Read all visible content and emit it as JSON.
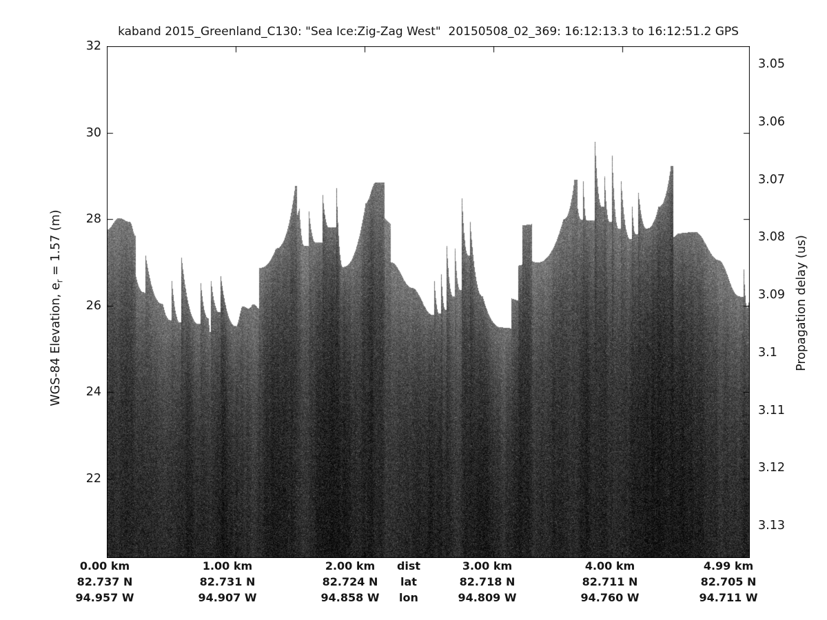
{
  "title": "kaband 2015_Greenland_C130: \"Sea Ice:Zig-Zag West\"  20150508_02_369: 16:12:13.3 to 16:12:51.2 GPS",
  "left_axis": {
    "label_prefix": "WGS-84 Elevation, e",
    "label_sub": "r",
    "label_suffix": " = 1.57 (m)",
    "tick_labels": [
      "32",
      "30",
      "28",
      "26",
      "24",
      "22"
    ],
    "tick_values": [
      32,
      30,
      28,
      26,
      24,
      22
    ]
  },
  "right_axis": {
    "label": "Propagation delay (us)",
    "tick_labels": [
      "3.05",
      "3.06",
      "3.07",
      "3.08",
      "3.09",
      "3.1",
      "3.11",
      "3.12",
      "3.13"
    ]
  },
  "bottom_axis": {
    "row_headers": [
      "dist",
      "lat",
      "lon"
    ],
    "columns": [
      {
        "cells": [
          "0.00 km",
          "82.737 N",
          "94.957 W"
        ]
      },
      {
        "cells": [
          "1.00 km",
          "82.731 N",
          "94.907 W"
        ]
      },
      {
        "cells": [
          "2.00 km",
          "82.724 N",
          "94.858 W"
        ]
      },
      {
        "cells": [
          "dist",
          "lat",
          "lon"
        ],
        "is_header": true
      },
      {
        "cells": [
          "3.00 km",
          "82.718 N",
          "94.809 W"
        ]
      },
      {
        "cells": [
          "4.00 km",
          "82.711 N",
          "94.760 W"
        ]
      },
      {
        "cells": [
          "4.99 km",
          "82.705 N",
          "94.711 W"
        ]
      }
    ]
  },
  "chart_data": {
    "type": "heatmap",
    "subtype": "radar-echogram",
    "description": "Ka-band radar altimeter echogram over sea ice: white above the surface return; speckled grey return below the jagged ice-surface line, darkening with depth; vertical streak noise in the deep region.",
    "x_axis": {
      "range_km": [
        0,
        4.99
      ],
      "tick_km": [
        1,
        2,
        3,
        4
      ]
    },
    "y_axis_elevation_m": {
      "ticks": [
        32,
        30,
        28,
        26,
        24,
        22
      ],
      "range": [
        20.16,
        32
      ]
    },
    "y_axis_delay_us": {
      "ticks": [
        3.05,
        3.06,
        3.07,
        3.08,
        3.09,
        3.1,
        3.11,
        3.12,
        3.13
      ]
    },
    "shading": {
      "surface_gray": 118,
      "deep_gray": 36,
      "noise_amplitude": 52,
      "background": "#ffffff"
    },
    "surface_profile_km_m": [
      [
        0.0,
        27.76,
        "s"
      ],
      [
        0.091,
        28.03,
        "a"
      ],
      [
        0.176,
        27.94,
        "a"
      ],
      [
        0.219,
        27.62,
        "a"
      ],
      [
        0.219,
        26.74,
        "v"
      ],
      [
        0.289,
        26.31,
        "t"
      ],
      [
        0.299,
        27.16,
        "v"
      ],
      [
        0.433,
        26.04,
        "t"
      ],
      [
        0.492,
        25.67,
        "t"
      ],
      [
        0.503,
        26.58,
        "v"
      ],
      [
        0.567,
        25.61,
        "t"
      ],
      [
        0.577,
        27.12,
        "v"
      ],
      [
        0.711,
        25.58,
        "t"
      ],
      [
        0.727,
        26.52,
        "v"
      ],
      [
        0.786,
        25.71,
        "t"
      ],
      [
        0.797,
        25.4,
        "l"
      ],
      [
        0.807,
        26.57,
        "v"
      ],
      [
        0.871,
        25.85,
        "t"
      ],
      [
        0.882,
        26.69,
        "v"
      ],
      [
        1.0,
        25.53,
        "t"
      ],
      [
        1.053,
        25.99,
        "a"
      ],
      [
        1.096,
        25.94,
        "a"
      ],
      [
        1.139,
        26.04,
        "a"
      ],
      [
        1.176,
        25.94,
        "a"
      ],
      [
        1.182,
        26.88,
        "v"
      ],
      [
        1.31,
        27.33,
        "c"
      ],
      [
        1.46,
        28.77,
        "c"
      ],
      [
        1.476,
        28.1,
        "v"
      ],
      [
        1.492,
        28.24,
        "l"
      ],
      [
        1.529,
        27.39,
        "t"
      ],
      [
        1.566,
        28.18,
        "v"
      ],
      [
        1.62,
        27.46,
        "t"
      ],
      [
        1.673,
        28.56,
        "v"
      ],
      [
        1.721,
        27.81,
        "t"
      ],
      [
        1.78,
        28.73,
        "v"
      ],
      [
        1.828,
        26.9,
        "t"
      ],
      [
        2.005,
        28.37,
        "c"
      ],
      [
        2.085,
        28.86,
        "a"
      ],
      [
        2.144,
        28.86,
        "a"
      ],
      [
        2.155,
        28.02,
        "v"
      ],
      [
        2.198,
        27.89,
        "l"
      ],
      [
        2.203,
        27.01,
        "v"
      ],
      [
        2.364,
        26.42,
        "a"
      ],
      [
        2.524,
        25.79,
        "a"
      ],
      [
        2.54,
        26.58,
        "v"
      ],
      [
        2.578,
        25.82,
        "t"
      ],
      [
        2.594,
        26.74,
        "v"
      ],
      [
        2.626,
        25.9,
        "t"
      ],
      [
        2.637,
        27.38,
        "v"
      ],
      [
        2.685,
        26.22,
        "t"
      ],
      [
        2.701,
        27.33,
        "v"
      ],
      [
        2.738,
        26.37,
        "t"
      ],
      [
        2.754,
        28.49,
        "v"
      ],
      [
        2.803,
        27.17,
        "t"
      ],
      [
        2.819,
        27.94,
        "v"
      ],
      [
        2.915,
        26.22,
        "t"
      ],
      [
        3.064,
        25.5,
        "t"
      ],
      [
        3.134,
        25.48,
        "l"
      ],
      [
        3.139,
        26.17,
        "v"
      ],
      [
        3.187,
        26.12,
        "l"
      ],
      [
        3.193,
        26.93,
        "v"
      ],
      [
        3.22,
        26.95,
        "l"
      ],
      [
        3.225,
        27.86,
        "v"
      ],
      [
        3.294,
        27.89,
        "l"
      ],
      [
        3.3,
        27.03,
        "v"
      ],
      [
        3.332,
        27.0,
        "l"
      ],
      [
        3.541,
        28.0,
        "c"
      ],
      [
        3.626,
        28.91,
        "c"
      ],
      [
        3.651,
        28.24,
        "v"
      ],
      [
        3.678,
        28.0,
        "t"
      ],
      [
        3.694,
        28.88,
        "v"
      ],
      [
        3.721,
        27.97,
        "t"
      ],
      [
        3.785,
        29.8,
        "v"
      ],
      [
        3.838,
        28.29,
        "t"
      ],
      [
        3.86,
        28.99,
        "v"
      ],
      [
        3.897,
        27.95,
        "t"
      ],
      [
        3.919,
        29.47,
        "v"
      ],
      [
        3.967,
        27.79,
        "t"
      ],
      [
        3.988,
        28.88,
        "v"
      ],
      [
        4.058,
        27.55,
        "t"
      ],
      [
        4.074,
        28.29,
        "v"
      ],
      [
        4.1,
        27.65,
        "t"
      ],
      [
        4.122,
        28.62,
        "v"
      ],
      [
        4.186,
        27.79,
        "t"
      ],
      [
        4.277,
        28.29,
        "c"
      ],
      [
        4.373,
        29.23,
        "c"
      ],
      [
        4.394,
        27.59,
        "v"
      ],
      [
        4.437,
        27.68,
        "a"
      ],
      [
        4.56,
        27.71,
        "a"
      ],
      [
        4.742,
        27.06,
        "a"
      ],
      [
        4.897,
        26.23,
        "a"
      ],
      [
        4.929,
        26.2,
        "l"
      ],
      [
        4.94,
        26.84,
        "v"
      ],
      [
        4.967,
        25.96,
        "t"
      ],
      [
        4.988,
        26.13,
        "l"
      ]
    ]
  }
}
